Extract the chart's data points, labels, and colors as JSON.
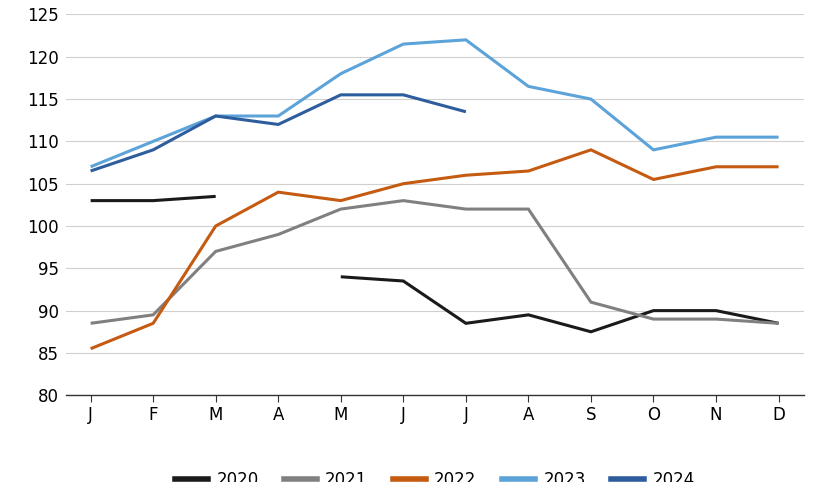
{
  "months": [
    "J",
    "F",
    "M",
    "A",
    "M",
    "J",
    "J",
    "A",
    "S",
    "O",
    "N",
    "D"
  ],
  "series": {
    "2020": [
      103,
      103,
      103.5,
      null,
      94,
      93.5,
      88.5,
      89.5,
      87.5,
      90,
      90,
      88.5
    ],
    "2021": [
      88.5,
      89.5,
      97,
      99,
      102,
      103,
      102,
      102,
      91,
      89,
      89,
      88.5
    ],
    "2022": [
      85.5,
      88.5,
      100,
      104,
      103,
      105,
      106,
      106.5,
      109,
      105.5,
      107,
      107
    ],
    "2023": [
      107,
      110,
      113,
      113,
      118,
      121.5,
      122,
      116.5,
      115,
      109,
      110.5,
      110.5
    ],
    "2024": [
      106.5,
      109,
      113,
      112,
      115.5,
      115.5,
      113.5,
      null,
      null,
      null,
      null,
      null
    ]
  },
  "colors": {
    "2020": "#1a1a1a",
    "2021": "#808080",
    "2022": "#c55a11",
    "2023": "#5ba3d9",
    "2024": "#2e5d9e"
  },
  "line_width": 2.2,
  "ylim": [
    80,
    125
  ],
  "yticks": [
    80,
    85,
    90,
    95,
    100,
    105,
    110,
    115,
    120,
    125
  ],
  "background_color": "#ffffff",
  "grid_color": "#d0d0d0",
  "tick_label_fontsize": 12,
  "legend_fontsize": 12
}
